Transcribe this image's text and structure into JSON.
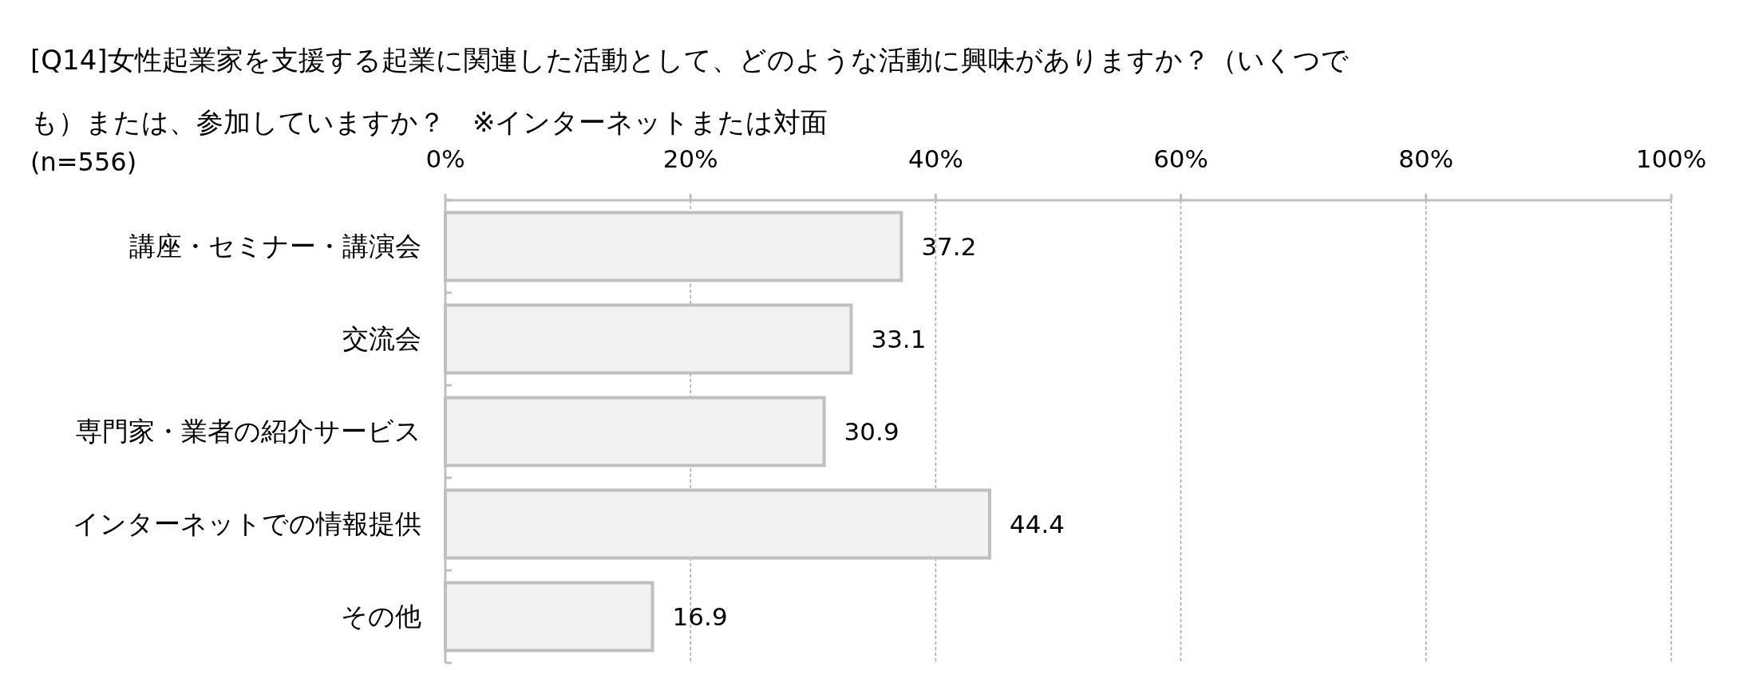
{
  "chart_data": {
    "type": "bar",
    "orientation": "horizontal",
    "title": "[Q14]女性起業家を支援する起業に関連した活動として、どのような活動に興味がありますか？（いくつでも）または、参加していますか？　※インターネットまたは対面",
    "subtitle": "(n=556)",
    "categories": [
      "講座・セミナー・講演会",
      "交流会",
      "専門家・業者の紹介サービス",
      "インターネットでの情報提供",
      "その他"
    ],
    "values": [
      37.2,
      33.1,
      30.9,
      44.4,
      16.9
    ],
    "color": "#f2f2f2",
    "data_labels": true,
    "xlim": [
      0,
      100
    ],
    "xticks": [
      {
        "value": 0,
        "label": "0%"
      },
      {
        "value": 20,
        "label": "20%"
      },
      {
        "value": 40,
        "label": "40%"
      },
      {
        "value": 60,
        "label": "60%"
      },
      {
        "value": 80,
        "label": "80%"
      },
      {
        "value": 100,
        "label": "100%"
      }
    ],
    "grid": "x"
  }
}
